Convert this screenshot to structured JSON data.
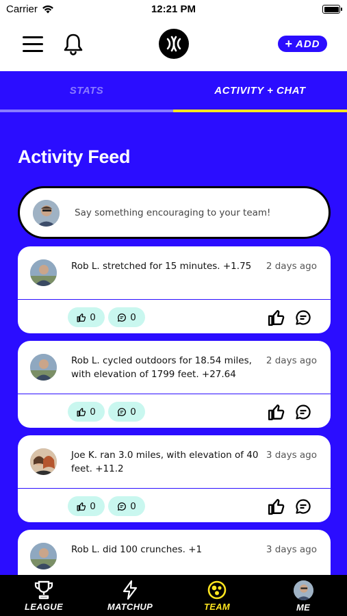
{
  "status_bar": {
    "carrier": "Carrier",
    "time": "12:21 PM"
  },
  "header": {
    "add_label": "ADD"
  },
  "tabs": [
    {
      "label": "STATS",
      "active": false
    },
    {
      "label": "ACTIVITY + CHAT",
      "active": true
    }
  ],
  "feed": {
    "title": "Activity Feed",
    "composer_placeholder": "Say something encouraging to your team!",
    "items": [
      {
        "text": "Rob L. stretched for 15 minutes. +1.75",
        "time_ago": "2 days ago",
        "likes": "0",
        "comments": "0"
      },
      {
        "text": "Rob L. cycled outdoors for 18.54 miles, with elevation of 1799 feet. +27.64",
        "time_ago": "2 days ago",
        "likes": "0",
        "comments": "0"
      },
      {
        "text": "Joe K. ran 3.0 miles, with elevation of 40 feet. +11.2",
        "time_ago": "3 days ago",
        "likes": "0",
        "comments": "0"
      },
      {
        "text": "Rob L. did 100 crunches. +1",
        "time_ago": "3 days ago"
      }
    ]
  },
  "bottom_nav": [
    {
      "label": "LEAGUE",
      "icon": "trophy-icon"
    },
    {
      "label": "MATCHUP",
      "icon": "lightning-icon"
    },
    {
      "label": "TEAM",
      "icon": "team-icon",
      "active": true
    },
    {
      "label": "ME",
      "icon": "avatar"
    }
  ],
  "colors": {
    "brand": "#2b0dff",
    "accent": "#ffe61f",
    "pill": "#c9f7ef",
    "inactive_tab": "#8a7cff"
  }
}
